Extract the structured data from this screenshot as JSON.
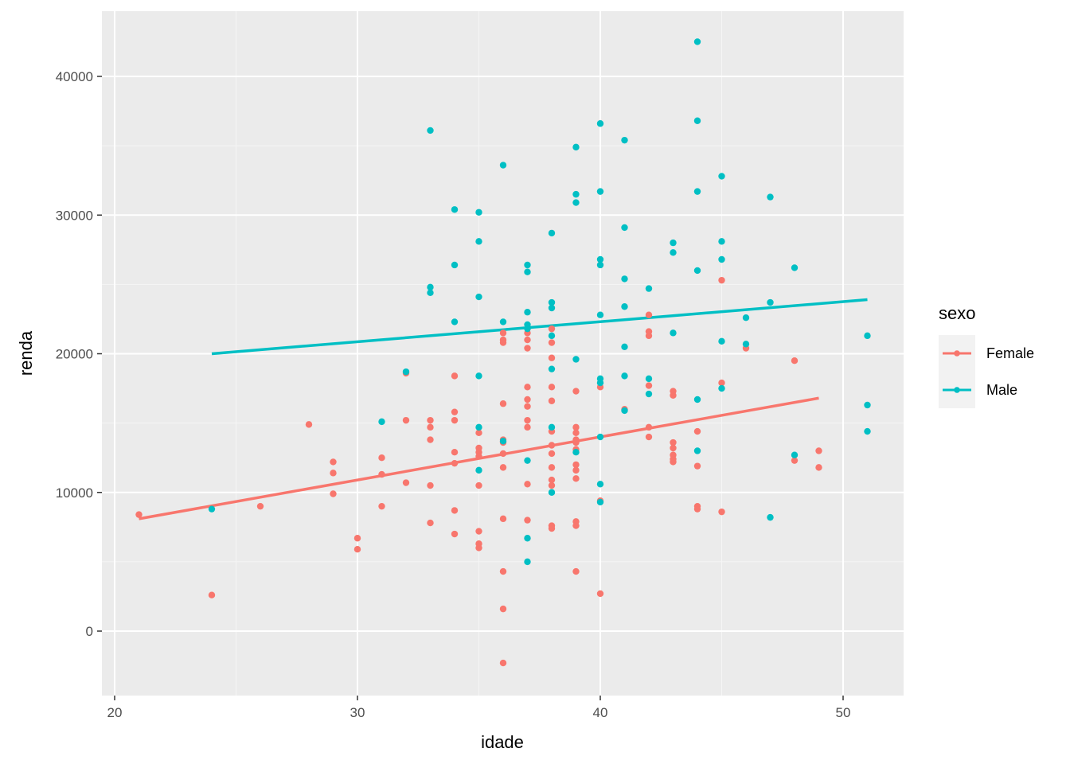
{
  "chart_data": {
    "type": "scatter",
    "xlabel": "idade",
    "ylabel": "renda",
    "xlim": [
      19.5,
      52.5
    ],
    "ylim": [
      -4700,
      44400
    ],
    "x_ticks": [
      20,
      30,
      40,
      50
    ],
    "y_ticks": [
      0,
      10000,
      20000,
      30000,
      40000
    ],
    "x_tick_labels": [
      "20",
      "30",
      "40",
      "50"
    ],
    "y_tick_labels": [
      "0",
      "10000",
      "20000",
      "30000",
      "40000"
    ],
    "grid": true,
    "legend": {
      "title": "sexo",
      "position": "right"
    },
    "series": [
      {
        "name": "Female",
        "color": "#F8766D",
        "points": [
          [
            21,
            8400
          ],
          [
            24,
            2600
          ],
          [
            26,
            9000
          ],
          [
            28,
            14900
          ],
          [
            29,
            12200
          ],
          [
            29,
            11400
          ],
          [
            29,
            9900
          ],
          [
            30,
            6700
          ],
          [
            30,
            5900
          ],
          [
            31,
            12500
          ],
          [
            31,
            11300
          ],
          [
            31,
            9000
          ],
          [
            32,
            18600
          ],
          [
            32,
            15200
          ],
          [
            32,
            10700
          ],
          [
            33,
            15200
          ],
          [
            33,
            14700
          ],
          [
            33,
            13800
          ],
          [
            33,
            10500
          ],
          [
            33,
            7800
          ],
          [
            34,
            18400
          ],
          [
            34,
            15800
          ],
          [
            34,
            15200
          ],
          [
            34,
            12900
          ],
          [
            34,
            12100
          ],
          [
            34,
            8700
          ],
          [
            34,
            7000
          ],
          [
            35,
            14300
          ],
          [
            35,
            13200
          ],
          [
            35,
            12900
          ],
          [
            35,
            12600
          ],
          [
            35,
            10500
          ],
          [
            35,
            7200
          ],
          [
            35,
            6300
          ],
          [
            35,
            6000
          ],
          [
            36,
            21500
          ],
          [
            36,
            21000
          ],
          [
            36,
            20800
          ],
          [
            36,
            16400
          ],
          [
            36,
            13800
          ],
          [
            36,
            13600
          ],
          [
            36,
            12800
          ],
          [
            36,
            11800
          ],
          [
            36,
            8100
          ],
          [
            36,
            4300
          ],
          [
            36,
            1600
          ],
          [
            36,
            -2300
          ],
          [
            37,
            21500
          ],
          [
            37,
            21000
          ],
          [
            37,
            20400
          ],
          [
            37,
            17600
          ],
          [
            37,
            16700
          ],
          [
            37,
            16200
          ],
          [
            37,
            15200
          ],
          [
            37,
            14700
          ],
          [
            37,
            10600
          ],
          [
            37,
            8000
          ],
          [
            38,
            21800
          ],
          [
            38,
            20800
          ],
          [
            38,
            19700
          ],
          [
            38,
            17600
          ],
          [
            38,
            16600
          ],
          [
            38,
            14400
          ],
          [
            38,
            13400
          ],
          [
            38,
            12800
          ],
          [
            38,
            11800
          ],
          [
            38,
            10900
          ],
          [
            38,
            10500
          ],
          [
            38,
            7600
          ],
          [
            38,
            7400
          ],
          [
            39,
            17300
          ],
          [
            39,
            14700
          ],
          [
            39,
            14300
          ],
          [
            39,
            13800
          ],
          [
            39,
            13600
          ],
          [
            39,
            13100
          ],
          [
            39,
            12000
          ],
          [
            39,
            11600
          ],
          [
            39,
            11000
          ],
          [
            39,
            7900
          ],
          [
            39,
            7600
          ],
          [
            39,
            4300
          ],
          [
            40,
            17600
          ],
          [
            40,
            9400
          ],
          [
            40,
            2700
          ],
          [
            41,
            16000
          ],
          [
            42,
            22800
          ],
          [
            42,
            21600
          ],
          [
            42,
            21300
          ],
          [
            42,
            17700
          ],
          [
            42,
            14700
          ],
          [
            42,
            14000
          ],
          [
            43,
            17300
          ],
          [
            43,
            17000
          ],
          [
            43,
            13600
          ],
          [
            43,
            13200
          ],
          [
            43,
            12700
          ],
          [
            43,
            12400
          ],
          [
            43,
            12200
          ],
          [
            44,
            14400
          ],
          [
            44,
            11900
          ],
          [
            44,
            9000
          ],
          [
            44,
            8800
          ],
          [
            45,
            25300
          ],
          [
            45,
            17900
          ],
          [
            45,
            8600
          ],
          [
            46,
            20400
          ],
          [
            48,
            19500
          ],
          [
            48,
            12300
          ],
          [
            49,
            13000
          ],
          [
            49,
            11800
          ]
        ],
        "fit": {
          "x": [
            21,
            49
          ],
          "y": [
            8100,
            16800
          ]
        }
      },
      {
        "name": "Male",
        "color": "#00BFC4",
        "points": [
          [
            24,
            8800
          ],
          [
            31,
            15100
          ],
          [
            32,
            18700
          ],
          [
            33,
            36100
          ],
          [
            33,
            24800
          ],
          [
            33,
            24400
          ],
          [
            34,
            30400
          ],
          [
            34,
            26400
          ],
          [
            34,
            22300
          ],
          [
            35,
            30200
          ],
          [
            35,
            28100
          ],
          [
            35,
            24100
          ],
          [
            35,
            18400
          ],
          [
            35,
            14700
          ],
          [
            35,
            11600
          ],
          [
            36,
            33600
          ],
          [
            36,
            22300
          ],
          [
            36,
            13700
          ],
          [
            37,
            26400
          ],
          [
            37,
            25900
          ],
          [
            37,
            23000
          ],
          [
            37,
            22100
          ],
          [
            37,
            21800
          ],
          [
            37,
            12300
          ],
          [
            37,
            6700
          ],
          [
            37,
            5000
          ],
          [
            38,
            28700
          ],
          [
            38,
            23700
          ],
          [
            38,
            23300
          ],
          [
            38,
            21300
          ],
          [
            38,
            18900
          ],
          [
            38,
            14700
          ],
          [
            38,
            10000
          ],
          [
            39,
            34900
          ],
          [
            39,
            31500
          ],
          [
            39,
            30900
          ],
          [
            39,
            19600
          ],
          [
            39,
            12900
          ],
          [
            40,
            36600
          ],
          [
            40,
            31700
          ],
          [
            40,
            26800
          ],
          [
            40,
            26400
          ],
          [
            40,
            22800
          ],
          [
            40,
            18200
          ],
          [
            40,
            17900
          ],
          [
            40,
            14000
          ],
          [
            40,
            10600
          ],
          [
            40,
            9300
          ],
          [
            41,
            35400
          ],
          [
            41,
            29100
          ],
          [
            41,
            25400
          ],
          [
            41,
            23400
          ],
          [
            41,
            20500
          ],
          [
            41,
            18400
          ],
          [
            41,
            15900
          ],
          [
            42,
            24700
          ],
          [
            42,
            18200
          ],
          [
            42,
            17100
          ],
          [
            43,
            28000
          ],
          [
            43,
            27300
          ],
          [
            43,
            21500
          ],
          [
            44,
            42500
          ],
          [
            44,
            36800
          ],
          [
            44,
            31700
          ],
          [
            44,
            26000
          ],
          [
            44,
            16700
          ],
          [
            44,
            13000
          ],
          [
            45,
            32800
          ],
          [
            45,
            28100
          ],
          [
            45,
            26800
          ],
          [
            45,
            20900
          ],
          [
            45,
            17500
          ],
          [
            46,
            22600
          ],
          [
            46,
            20700
          ],
          [
            47,
            31300
          ],
          [
            47,
            23700
          ],
          [
            47,
            8200
          ],
          [
            48,
            26200
          ],
          [
            48,
            12700
          ],
          [
            51,
            21300
          ],
          [
            51,
            16300
          ],
          [
            51,
            14400
          ]
        ],
        "fit": {
          "x": [
            24,
            51
          ],
          "y": [
            20000,
            23900
          ]
        }
      }
    ]
  }
}
